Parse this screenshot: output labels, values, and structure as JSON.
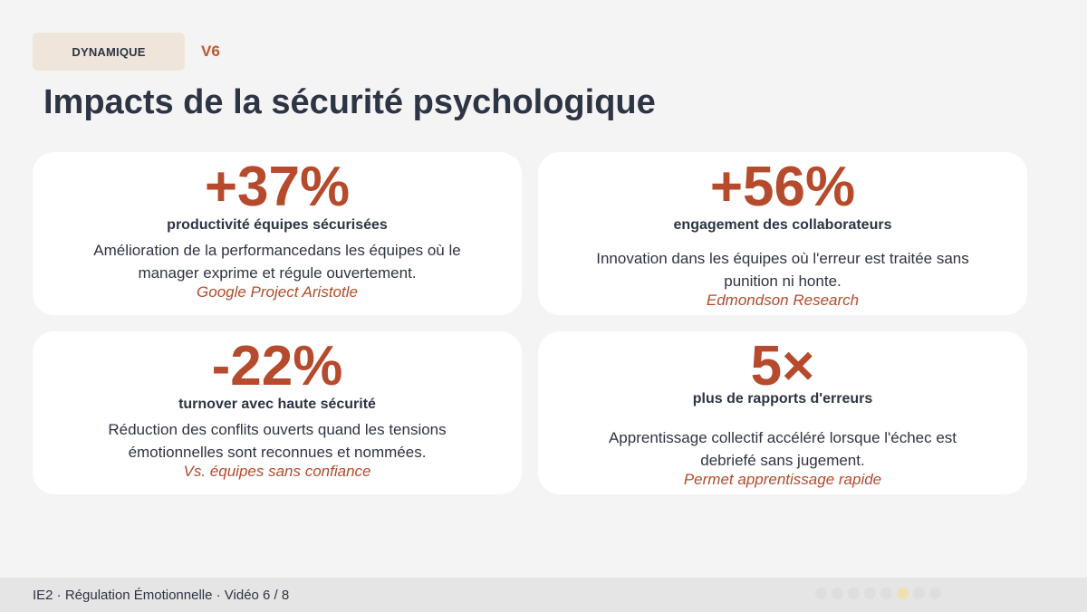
{
  "header": {
    "tag": "DYNAMIQUE",
    "version": "V6",
    "title": "Impacts de la sécurité psychologique"
  },
  "cards": [
    {
      "stat": "+37%",
      "label": "productivité équipes sécurisées",
      "line1": "Amélioration de la performancedans les équipes où le",
      "line2": "manager exprime et régule ouvertement.",
      "source": "Google Project Aristotle"
    },
    {
      "stat": "+56%",
      "label": "engagement des collaborateurs",
      "line1": "Innovation dans les équipes où l'erreur est traitée sans",
      "line2": "punition ni honte.",
      "source": "Edmondson Research"
    },
    {
      "stat": "-22%",
      "label": "turnover avec haute sécurité",
      "line1": "Réduction des conflits ouverts quand les tensions",
      "line2": "émotionnelles sont reconnues et nommées.",
      "source": "Vs. équipes sans confiance"
    },
    {
      "stat": "5×",
      "label": "plus de rapports d'erreurs",
      "line1": "Apprentissage collectif accéléré lorsque l'échec est",
      "line2": "debriefé sans jugement.",
      "source": "Permet apprentissage rapide"
    }
  ],
  "footer": {
    "text": "IE2 · Régulation Émotionnelle · Vidéo 6 / 8",
    "progress": {
      "current": 6,
      "total": 8
    }
  }
}
